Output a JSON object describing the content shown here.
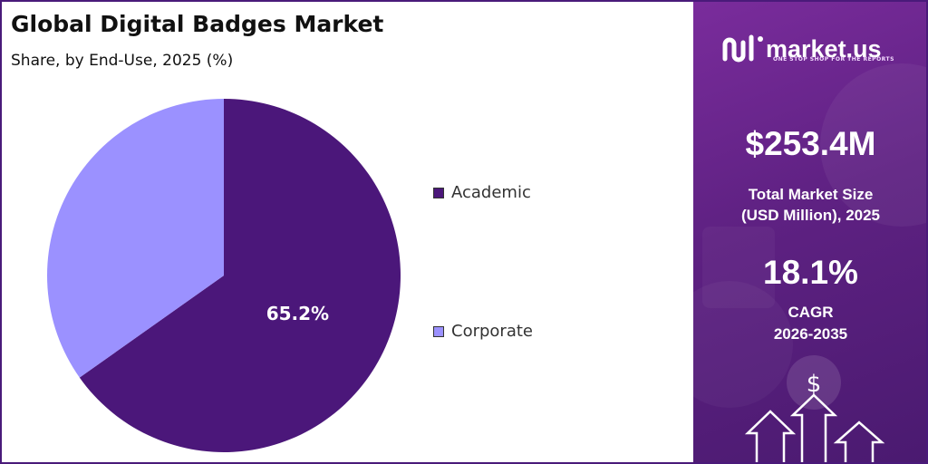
{
  "header": {
    "title": "Global Digital Badges Market",
    "subtitle": "Share, by End-Use, 2025 (%)"
  },
  "chart_data": {
    "type": "pie",
    "categories": [
      "Academic",
      "Corporate"
    ],
    "values": [
      65.2,
      34.8
    ],
    "data_labels": [
      "65.2%",
      ""
    ],
    "colors": [
      "#4b177a",
      "#9b91ff"
    ],
    "legend_position": "right"
  },
  "sidebar": {
    "brand_name": "market.us",
    "brand_tagline": "ONE STOP SHOP FOR THE REPORTS",
    "market_size_value": "$253.4M",
    "market_size_label_line1": "Total Market Size",
    "market_size_label_line2": "(USD Million), 2025",
    "cagr_value": "18.1%",
    "cagr_label_line1": "CAGR",
    "cagr_label_line2": "2026-2035",
    "icons": [
      "market-us-logo-icon",
      "dollar-icon",
      "up-arrow-icon"
    ]
  }
}
